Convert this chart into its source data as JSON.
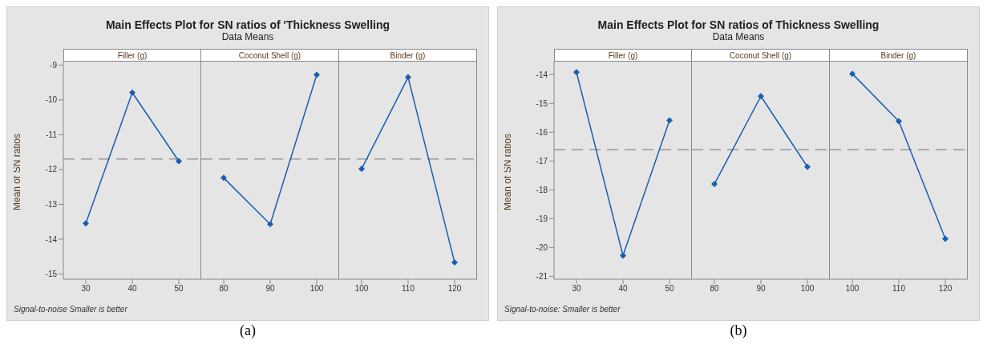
{
  "chart_data": [
    {
      "type": "other",
      "title": "Main Effects Plot for SN ratios of 'Thickness Swelling",
      "subtitle": "Data Means",
      "annotations": [
        "Signal-to-noise Smaller is better",
        "(a)"
      ]
    },
    {
      "type": "line",
      "title": "Filler (g)",
      "ylabel": "Mean of SN ratios",
      "categories": [
        "30",
        "40",
        "50"
      ],
      "values": [
        -13.55,
        -9.79,
        -11.76
      ],
      "color": "#1a5eb0",
      "marker": "diamond",
      "ylim": [
        -15.15,
        -8.9
      ],
      "yticks": [
        -15,
        -14,
        -13,
        -12,
        -11,
        -10,
        -9
      ],
      "ref_lines": [
        {
          "axis": "y",
          "value": -11.7,
          "color": "#999999",
          "line_style": "dashed"
        }
      ]
    },
    {
      "type": "line",
      "title": "Coconut Shell (g)",
      "categories": [
        "80",
        "90",
        "100"
      ],
      "values": [
        -12.24,
        -13.57,
        -9.28
      ],
      "color": "#1a5eb0",
      "marker": "diamond",
      "ylim": [
        -15.15,
        -8.9
      ],
      "tick_labels": "x",
      "ref_lines": [
        {
          "axis": "y",
          "value": -11.7,
          "color": "#999999",
          "line_style": "dashed"
        }
      ]
    },
    {
      "type": "line",
      "title": "Binder (g)",
      "categories": [
        "100",
        "110",
        "120"
      ],
      "values": [
        -11.98,
        -9.35,
        -14.67
      ],
      "color": "#1a5eb0",
      "marker": "diamond",
      "ylim": [
        -15.15,
        -8.9
      ],
      "tick_labels": "x",
      "ref_lines": [
        {
          "axis": "y",
          "value": -11.7,
          "color": "#999999",
          "line_style": "dashed"
        }
      ]
    },
    {
      "type": "other",
      "title": "Main Effects Plot for SN ratios of Thickness Swelling",
      "subtitle": "Data Means",
      "annotations": [
        "Signal-to-noise: Smaller is better",
        "(b)"
      ]
    },
    {
      "type": "line",
      "title": "Filler (g)",
      "ylabel": "Mean of SN ratios",
      "categories": [
        "30",
        "40",
        "50"
      ],
      "values": [
        -13.92,
        -20.28,
        -15.59
      ],
      "color": "#1a5eb0",
      "marker": "diamond",
      "ylim": [
        -21.1,
        -13.55
      ],
      "yticks": [
        -21,
        -20,
        -19,
        -18,
        -17,
        -16,
        -15,
        -14
      ],
      "ref_lines": [
        {
          "axis": "y",
          "value": -16.6,
          "color": "#999999",
          "line_style": "dashed"
        }
      ]
    },
    {
      "type": "line",
      "title": "Coconut Shell (g)",
      "categories": [
        "80",
        "90",
        "100"
      ],
      "values": [
        -17.8,
        -14.75,
        -17.2
      ],
      "color": "#1a5eb0",
      "marker": "diamond",
      "ylim": [
        -21.1,
        -13.55
      ],
      "tick_labels": "x",
      "ref_lines": [
        {
          "axis": "y",
          "value": -16.6,
          "color": "#999999",
          "line_style": "dashed"
        }
      ]
    },
    {
      "type": "line",
      "title": "Binder (g)",
      "categories": [
        "100",
        "110",
        "120"
      ],
      "values": [
        -13.97,
        -15.62,
        -19.7
      ],
      "color": "#1a5eb0",
      "marker": "diamond",
      "ylim": [
        -21.1,
        -13.55
      ],
      "tick_labels": "x",
      "ref_lines": [
        {
          "axis": "y",
          "value": -16.6,
          "color": "#999999",
          "line_style": "dashed"
        }
      ]
    }
  ]
}
